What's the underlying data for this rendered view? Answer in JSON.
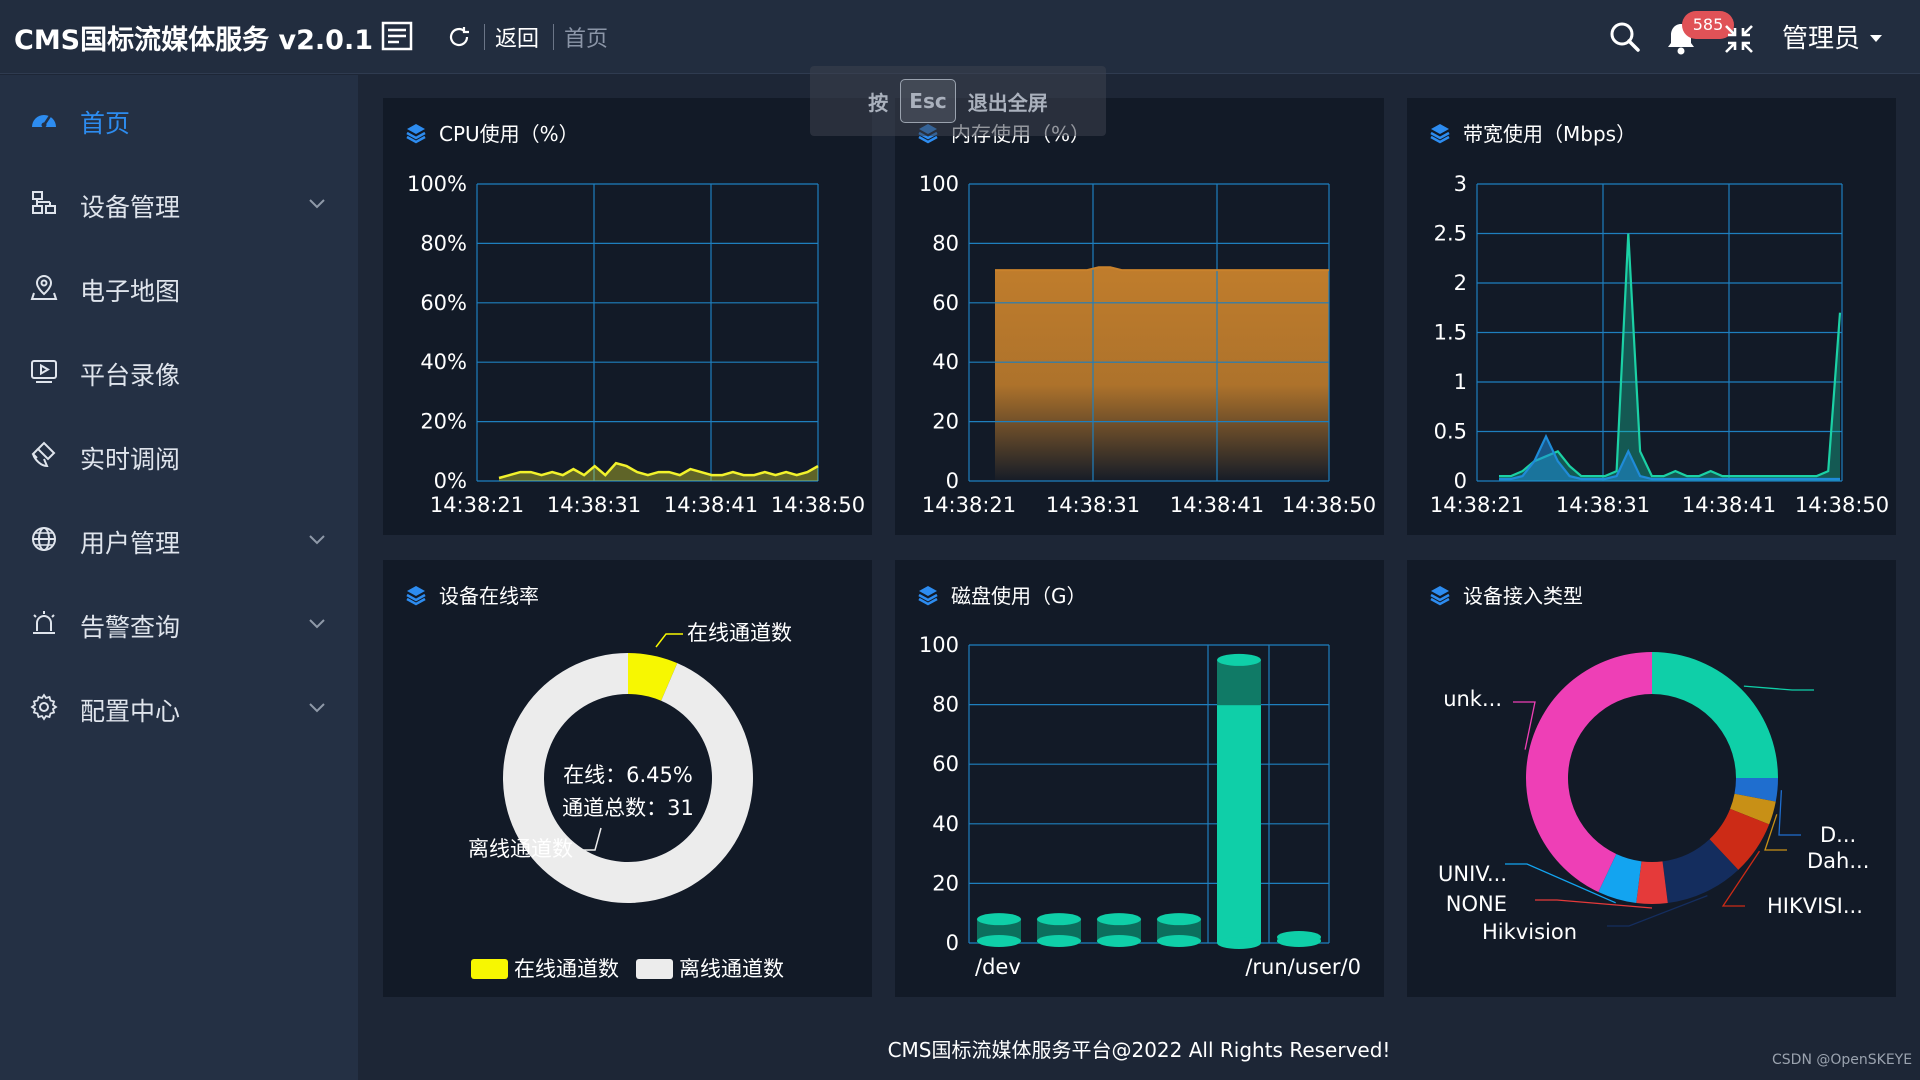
{
  "header": {
    "app_title": "CMS国标流媒体服务 v2.0.1",
    "nav_back": "返回",
    "nav_home": "首页",
    "notification_count": "585",
    "user_name": "管理员",
    "icons": [
      "menu-toggle-icon",
      "refresh-icon",
      "search-icon",
      "bell-icon",
      "exit-fullscreen-icon",
      "caret-down-icon"
    ]
  },
  "esc_toast": {
    "press": "按",
    "key": "Esc",
    "message": "退出全屏"
  },
  "sidebar": {
    "items": [
      {
        "label": "首页",
        "icon": "dashboard-icon",
        "active": true,
        "has_children": false
      },
      {
        "label": "设备管理",
        "icon": "device-tree-icon",
        "active": false,
        "has_children": true
      },
      {
        "label": "电子地图",
        "icon": "map-pin-icon",
        "active": false,
        "has_children": false
      },
      {
        "label": "平台录像",
        "icon": "video-play-icon",
        "active": false,
        "has_children": false
      },
      {
        "label": "实时调阅",
        "icon": "brush-icon",
        "active": false,
        "has_children": false
      },
      {
        "label": "用户管理",
        "icon": "globe-icon",
        "active": false,
        "has_children": true
      },
      {
        "label": "告警查询",
        "icon": "alarm-icon",
        "active": false,
        "has_children": true
      },
      {
        "label": "配置中心",
        "icon": "gear-icon",
        "active": false,
        "has_children": true
      }
    ]
  },
  "panels": {
    "cpu": {
      "title": "CPU使用（%）"
    },
    "memory": {
      "title": "内存使用（%）"
    },
    "bandwidth": {
      "title": "带宽使用（Mbps）"
    },
    "online": {
      "title": "设备在线率",
      "center_line1": "在线：6.45%",
      "center_line2": "通道总数：31",
      "label_online": "在线通道数",
      "label_offline": "离线通道数",
      "legend": [
        "在线通道数",
        "离线通道数"
      ]
    },
    "disk": {
      "title": "磁盘使用（G）"
    },
    "access": {
      "title": "设备接入类型"
    }
  },
  "footer": "CMS国标流媒体服务平台@2022 All Rights Reserved!",
  "watermark": "CSDN @OpenSKEYE",
  "colors": {
    "accent": "#2d8cf0",
    "grid": "#1e7fbe",
    "cpu_line": "#f2f22c",
    "memory_area": "#c9822c",
    "bandwidth_line": "#1bd1a5",
    "online_slice": "#f7f701",
    "offline_slice": "#ececec",
    "disk_bar": "#0fcfa8"
  },
  "chart_data": [
    {
      "type": "line",
      "title": "CPU使用（%）",
      "x_ticks": [
        "14:38:21",
        "14:38:31",
        "14:38:41",
        "14:38:50"
      ],
      "y_ticks": [
        "0%",
        "20%",
        "40%",
        "60%",
        "80%",
        "100%"
      ],
      "ylim": [
        0,
        100
      ],
      "series": [
        {
          "values": [
            1,
            2,
            3,
            3,
            2,
            3,
            2,
            4,
            2,
            5,
            2,
            6,
            5,
            3,
            2,
            3,
            3,
            2,
            4,
            3,
            2,
            2,
            3,
            2,
            2,
            3,
            2,
            3,
            2,
            3,
            5
          ]
        }
      ]
    },
    {
      "type": "area",
      "title": "内存使用（%）",
      "x_ticks": [
        "14:38:21",
        "14:38:31",
        "14:38:41",
        "14:38:50"
      ],
      "y_ticks": [
        "0",
        "20",
        "40",
        "60",
        "80",
        "100"
      ],
      "ylim": [
        0,
        100
      ],
      "series": [
        {
          "values": [
            71,
            71,
            71,
            71,
            71,
            71,
            71,
            71,
            71,
            72,
            72,
            71,
            71,
            71,
            71,
            71,
            71,
            71,
            71,
            71,
            71,
            71,
            71,
            71,
            71,
            71,
            71,
            71,
            71,
            71
          ]
        }
      ]
    },
    {
      "type": "line",
      "title": "带宽使用（Mbps）",
      "x_ticks": [
        "14:38:21",
        "14:38:31",
        "14:38:41",
        "14:38:50"
      ],
      "y_ticks": [
        "0",
        "0.5",
        "1",
        "1.5",
        "2",
        "2.5",
        "3"
      ],
      "ylim": [
        0,
        3
      ],
      "series": [
        {
          "values": [
            0.05,
            0.05,
            0.1,
            0.2,
            0.25,
            0.3,
            0.15,
            0.05,
            0.05,
            0.05,
            0.1,
            2.5,
            0.3,
            0.05,
            0.05,
            0.1,
            0.05,
            0.05,
            0.1,
            0.05,
            0.05,
            0.05,
            0.05,
            0.05,
            0.05,
            0.05,
            0.05,
            0.05,
            0.1,
            1.7
          ]
        },
        {
          "values": [
            0.02,
            0.02,
            0.05,
            0.2,
            0.45,
            0.2,
            0.05,
            0.02,
            0.02,
            0.02,
            0.05,
            0.3,
            0.05,
            0.02,
            0.02,
            0.02,
            0.02,
            0.02,
            0.02,
            0.02,
            0.02,
            0.02,
            0.02,
            0.02,
            0.02,
            0.02,
            0.02,
            0.02,
            0.02,
            0.02
          ]
        }
      ]
    },
    {
      "type": "pie",
      "title": "设备在线率",
      "labels": [
        "在线通道数",
        "离线通道数"
      ],
      "values": [
        6.45,
        93.55
      ]
    },
    {
      "type": "bar",
      "title": "磁盘使用（G）",
      "x_ticks": [
        "/dev",
        "/run/user/0"
      ],
      "y_ticks": [
        "0",
        "20",
        "40",
        "60",
        "80",
        "100"
      ],
      "ylim": [
        0,
        100
      ],
      "series": [
        {
          "values": [
            8,
            8,
            8,
            8,
            95,
            2
          ]
        }
      ]
    },
    {
      "type": "pie",
      "title": "设备接入类型",
      "labels": [
        "",
        "D...",
        "Dah...",
        "HIKVISI...",
        "Hikvision",
        "NONE",
        "UNIV...",
        "unk..."
      ],
      "values": [
        25,
        3,
        3,
        7,
        10,
        4,
        5,
        43
      ]
    }
  ]
}
